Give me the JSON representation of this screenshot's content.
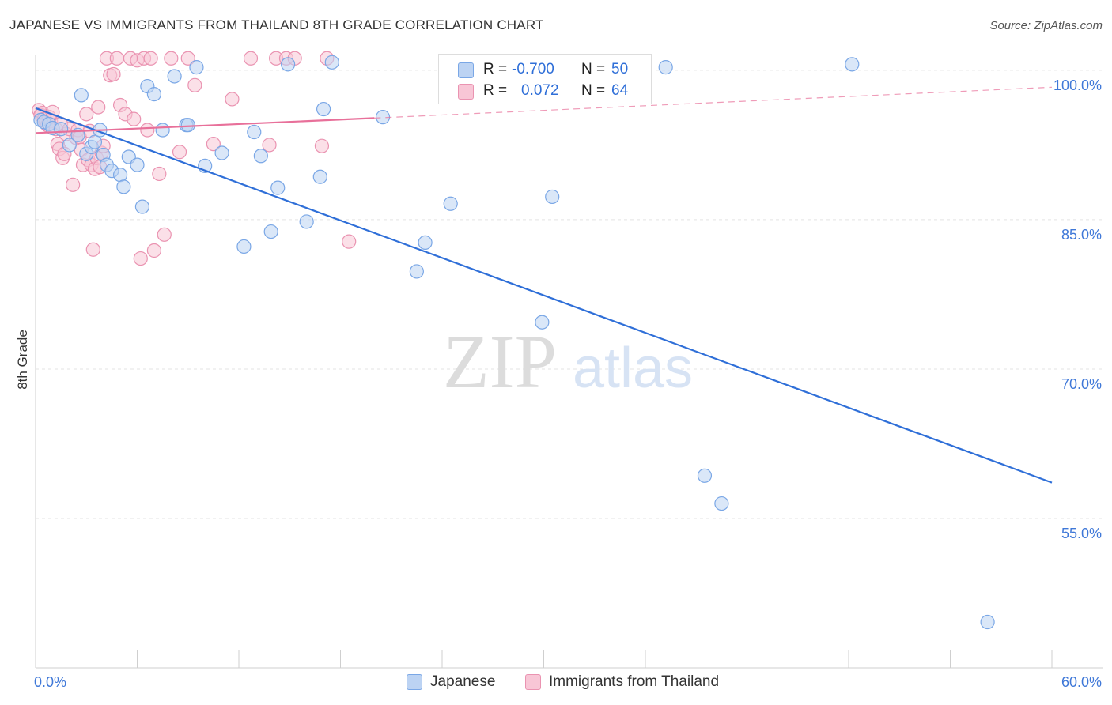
{
  "title": "JAPANESE VS IMMIGRANTS FROM THAILAND 8TH GRADE CORRELATION CHART",
  "source": "Source: ZipAtlas.com",
  "watermark": {
    "zip": "ZIP",
    "atlas": "atlas"
  },
  "legend": {
    "r_label": "R =",
    "n_label": "N =",
    "series": [
      {
        "name": "Japanese",
        "r": "-0.700",
        "n": "50",
        "fill": "#bcd3f3",
        "stroke": "#7aa7e6",
        "line": "#2f6fd8"
      },
      {
        "name": "Immigrants from Thailand",
        "r": "0.072",
        "n": "64",
        "fill": "#f8c6d6",
        "stroke": "#ea93b1",
        "line": "#e8709a"
      }
    ]
  },
  "chart_data": {
    "type": "scatter",
    "title": "JAPANESE VS IMMIGRANTS FROM THAILAND 8TH GRADE CORRELATION CHART",
    "xlabel": "",
    "ylabel": "8th Grade",
    "xlim": [
      0,
      60
    ],
    "ylim": [
      40,
      101.5
    ],
    "x_tick_labels": [
      "0.0%",
      "60.0%"
    ],
    "y_tick_labels": [
      "100.0%",
      "85.0%",
      "70.0%",
      "55.0%"
    ],
    "y_ticks": [
      100,
      85,
      70,
      55
    ],
    "series": [
      {
        "name": "Japanese",
        "x": [
          0.3,
          0.5,
          0.8,
          1.0,
          1.5,
          2.0,
          2.5,
          2.7,
          3.0,
          3.3,
          3.5,
          3.8,
          4.0,
          4.2,
          4.5,
          5.0,
          5.2,
          5.5,
          6.0,
          6.3,
          6.6,
          7.0,
          7.5,
          8.2,
          8.9,
          9.0,
          9.5,
          10.0,
          11.0,
          12.3,
          12.9,
          13.3,
          13.9,
          14.3,
          14.9,
          16.0,
          16.8,
          17.0,
          17.5,
          20.5,
          22.5,
          23.0,
          24.5,
          29.9,
          30.5,
          37.2,
          39.5,
          40.5,
          48.2,
          56.2
        ],
        "y": [
          95.0,
          94.8,
          94.6,
          94.2,
          94.1,
          92.5,
          93.5,
          97.5,
          91.6,
          92.3,
          92.8,
          94.0,
          91.5,
          90.5,
          89.9,
          89.5,
          88.3,
          91.3,
          90.5,
          86.3,
          98.4,
          97.6,
          94.0,
          99.4,
          94.5,
          94.5,
          100.3,
          90.4,
          91.7,
          82.3,
          93.8,
          91.4,
          83.8,
          88.2,
          100.6,
          84.8,
          89.3,
          96.1,
          100.8,
          95.3,
          79.8,
          82.7,
          86.6,
          74.7,
          87.3,
          100.3,
          59.3,
          56.5,
          100.6,
          44.6
        ]
      },
      {
        "name": "Immigrants from Thailand",
        "x": [
          0.2,
          0.3,
          0.4,
          0.5,
          0.6,
          0.7,
          0.8,
          0.9,
          1.0,
          1.2,
          1.3,
          1.4,
          1.5,
          1.6,
          1.7,
          1.8,
          2.0,
          2.2,
          2.4,
          2.5,
          2.6,
          2.7,
          2.8,
          3.0,
          3.1,
          3.2,
          3.3,
          3.4,
          3.5,
          3.6,
          3.7,
          3.8,
          3.9,
          4.0,
          4.2,
          4.4,
          4.6,
          4.8,
          5.0,
          5.3,
          5.6,
          5.8,
          6.0,
          6.2,
          6.4,
          6.6,
          6.8,
          7.0,
          7.3,
          7.6,
          8.0,
          8.5,
          9.0,
          9.4,
          10.5,
          11.6,
          12.7,
          13.8,
          14.2,
          14.8,
          15.3,
          16.9,
          17.2,
          18.5
        ],
        "y": [
          96.0,
          95.5,
          95.7,
          95.1,
          94.7,
          94.5,
          95.3,
          94.9,
          95.8,
          94.1,
          92.6,
          92.1,
          94.6,
          91.2,
          91.6,
          93.6,
          94.1,
          88.5,
          93.2,
          94.0,
          93.3,
          92.0,
          90.5,
          95.6,
          91.0,
          93.9,
          90.5,
          82.0,
          90.1,
          91.2,
          96.3,
          90.3,
          91.7,
          92.4,
          101.2,
          99.5,
          99.6,
          101.2,
          96.5,
          95.6,
          101.2,
          95.1,
          101.0,
          81.1,
          101.2,
          94.0,
          101.2,
          81.9,
          89.6,
          83.5,
          101.2,
          91.8,
          101.2,
          98.5,
          92.6,
          97.1,
          101.2,
          92.5,
          101.2,
          101.2,
          101.2,
          92.4,
          101.2,
          82.8
        ]
      }
    ],
    "trend_lines": [
      {
        "name": "Japanese",
        "x": [
          0,
          60
        ],
        "y": [
          96.2,
          58.6
        ],
        "style": "solid"
      },
      {
        "name": "Immigrants from Thailand",
        "x": [
          0,
          20
        ],
        "y": [
          93.7,
          95.2
        ],
        "style": "solid"
      },
      {
        "name": "Immigrants from Thailand (extension)",
        "x": [
          20,
          60
        ],
        "y": [
          95.2,
          98.3
        ],
        "style": "dashed"
      }
    ]
  }
}
